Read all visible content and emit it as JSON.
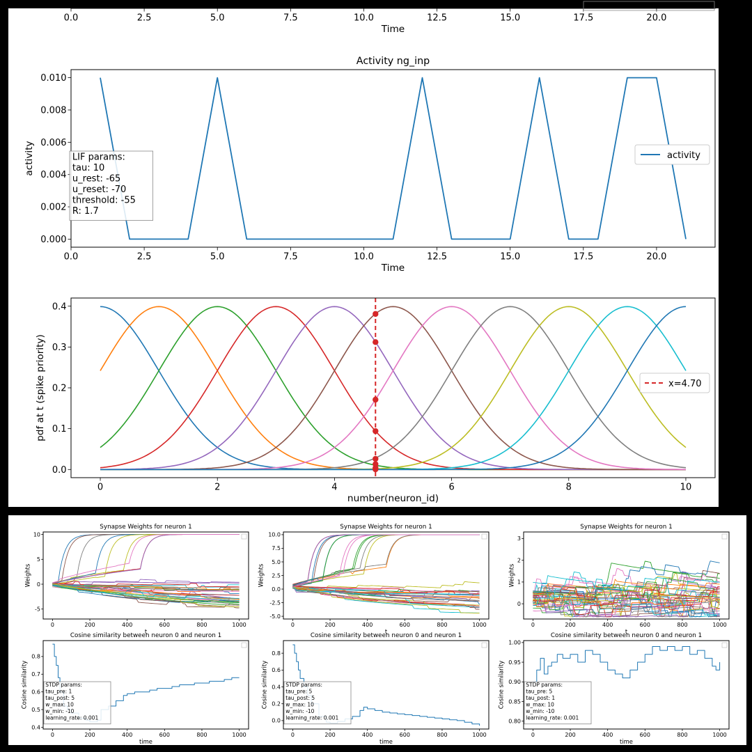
{
  "colors": {
    "tab10": [
      "#1f77b4",
      "#ff7f0e",
      "#2ca02c",
      "#d62728",
      "#9467bd",
      "#8c564b",
      "#e377c2",
      "#7f7f7f",
      "#bcbd22",
      "#17becf"
    ],
    "activity_line": "#1f77b4",
    "vline": "#d62728"
  },
  "chart_data": [
    {
      "id": "top-cut-plot",
      "type": "line",
      "title": "",
      "xlabel": "Time",
      "ylabel": "",
      "xlim": [
        0,
        22
      ],
      "xticks": [
        0.0,
        2.5,
        5.0,
        7.5,
        10.0,
        12.5,
        15.0,
        17.5,
        20.0
      ],
      "xtick_labels": [
        "0.0",
        "2.5",
        "5.0",
        "7.5",
        "10.0",
        "12.5",
        "15.0",
        "17.5",
        "20.0"
      ],
      "series": []
    },
    {
      "id": "activity",
      "type": "line",
      "title": "Activity ng_inp",
      "xlabel": "Time",
      "ylabel": "activity",
      "xlim": [
        0,
        22
      ],
      "ylim": [
        -0.0005,
        0.0105
      ],
      "xticks": [
        0.0,
        2.5,
        5.0,
        7.5,
        10.0,
        12.5,
        15.0,
        17.5,
        20.0
      ],
      "xtick_labels": [
        "0.0",
        "2.5",
        "5.0",
        "7.5",
        "10.0",
        "12.5",
        "15.0",
        "17.5",
        "20.0"
      ],
      "yticks": [
        0.0,
        0.002,
        0.004,
        0.006,
        0.008,
        0.01
      ],
      "ytick_labels": [
        "0.000",
        "0.002",
        "0.004",
        "0.006",
        "0.008",
        "0.010"
      ],
      "series": [
        {
          "name": "activity",
          "x": [
            1,
            2,
            3,
            4,
            5,
            6,
            7,
            8,
            9,
            10,
            11,
            12,
            13,
            14,
            15,
            16,
            17,
            18,
            19,
            20,
            21
          ],
          "y": [
            0.01,
            0,
            0,
            0,
            0.01,
            0,
            0,
            0,
            0,
            0,
            0,
            0.01,
            0,
            0,
            0,
            0.01,
            0,
            0,
            0.01,
            0.01,
            0
          ]
        }
      ],
      "legend": {
        "position": "center-right",
        "entries": [
          "activity"
        ]
      },
      "annotation": [
        "LIF params:",
        "tau: 10",
        "u_rest: -65",
        "u_reset: -70",
        "threshold: -55",
        "R: 1.7"
      ]
    },
    {
      "id": "gaussian",
      "type": "line",
      "title": "",
      "xlabel": "number(neuron_id)",
      "ylabel": "pdf at t (spike priority)",
      "xlim": [
        -0.5,
        10.5
      ],
      "ylim": [
        -0.02,
        0.42
      ],
      "xticks": [
        0,
        2,
        4,
        6,
        8,
        10
      ],
      "xtick_labels": [
        "0",
        "2",
        "4",
        "6",
        "8",
        "10"
      ],
      "yticks": [
        0.0,
        0.1,
        0.2,
        0.3,
        0.4
      ],
      "ytick_labels": [
        "0.0",
        "0.1",
        "0.2",
        "0.3",
        "0.4"
      ],
      "gaussian_series": {
        "count": 11,
        "means": [
          0,
          1,
          2,
          3,
          4,
          5,
          6,
          7,
          8,
          9,
          10
        ],
        "std": 1.0,
        "x_range": [
          0,
          10
        ]
      },
      "vline": {
        "x": 4.7,
        "label": "x=4.70"
      },
      "marker_values": [
        0.381,
        0.312,
        0.171,
        0.094,
        0.026,
        0.013,
        0.004,
        0.0005
      ],
      "legend": {
        "position": "center-right",
        "entries": [
          "x=4.70"
        ]
      }
    },
    {
      "id": "weights-1",
      "type": "line",
      "title": "Synapse Weights for neuron 1",
      "xlabel": "t",
      "ylabel": "Weights",
      "xlim": [
        -50,
        1050
      ],
      "ylim": [
        -7,
        10.5
      ],
      "xticks": [
        0,
        200,
        400,
        600,
        800,
        1000
      ],
      "xtick_labels": [
        "0",
        "200",
        "400",
        "600",
        "800",
        "1000"
      ],
      "yticks": [
        -5,
        0,
        5,
        10
      ],
      "ytick_labels": [
        "-5",
        "0",
        "5",
        "10"
      ],
      "n_series": 40,
      "pattern": {
        "up_fraction": 0.3,
        "end_low": -6.5,
        "end_high": 10,
        "start": 0
      }
    },
    {
      "id": "weights-2",
      "type": "line",
      "title": "Synapse Weights for neuron 1",
      "xlabel": "t",
      "ylabel": "Weights",
      "xlim": [
        -50,
        1050
      ],
      "ylim": [
        -5.5,
        10.5
      ],
      "xticks": [
        0,
        200,
        400,
        600,
        800,
        1000
      ],
      "xtick_labels": [
        "0",
        "200",
        "400",
        "600",
        "800",
        "1000"
      ],
      "yticks": [
        -5.0,
        -2.5,
        0.0,
        2.5,
        5.0,
        7.5,
        10.0
      ],
      "ytick_labels": [
        "-5.0",
        "-2.5",
        "0.0",
        "2.5",
        "5.0",
        "7.5",
        "10.0"
      ],
      "n_series": 40,
      "pattern": {
        "up_fraction": 0.25,
        "end_low": -5,
        "end_high": 10,
        "start": 0.5
      }
    },
    {
      "id": "weights-3",
      "type": "line",
      "title": "Synapse Weights for neuron 1",
      "xlabel": "t",
      "ylabel": "Weights",
      "xlim": [
        -50,
        1050
      ],
      "ylim": [
        -0.7,
        3.3
      ],
      "xticks": [
        0,
        200,
        400,
        600,
        800,
        1000
      ],
      "xtick_labels": [
        "0",
        "200",
        "400",
        "600",
        "800",
        "1000"
      ],
      "yticks": [
        0,
        1,
        2,
        3
      ],
      "ytick_labels": [
        "0",
        "1",
        "2",
        "3"
      ],
      "n_series": 40,
      "pattern": {
        "up_fraction": 0.0,
        "end_low": -0.5,
        "end_high": 3,
        "start": 0.3
      }
    },
    {
      "id": "cos-1",
      "type": "line",
      "title": "Cosine similarity between neuron 0 and neuron 1",
      "xlabel": "time",
      "ylabel": "Cosine similarity",
      "xlim": [
        -50,
        1050
      ],
      "ylim": [
        0.39,
        0.89
      ],
      "xticks": [
        0,
        200,
        400,
        600,
        800,
        1000
      ],
      "xtick_labels": [
        "0",
        "200",
        "400",
        "600",
        "800",
        "1000"
      ],
      "yticks": [
        0.4,
        0.5,
        0.6,
        0.7,
        0.8
      ],
      "ytick_labels": [
        "0.4",
        "0.5",
        "0.6",
        "0.7",
        "0.8"
      ],
      "series": [
        {
          "x": [
            0,
            10,
            20,
            30,
            40,
            60,
            80,
            100,
            140,
            180,
            200,
            240,
            260,
            300,
            340,
            380,
            400,
            440,
            480,
            520,
            560,
            600,
            640,
            680,
            720,
            760,
            800,
            840,
            880,
            920,
            960,
            1000
          ],
          "y": [
            0.87,
            0.8,
            0.75,
            0.68,
            0.6,
            0.52,
            0.5,
            0.48,
            0.45,
            0.44,
            0.43,
            0.44,
            0.5,
            0.52,
            0.55,
            0.58,
            0.59,
            0.6,
            0.6,
            0.61,
            0.62,
            0.62,
            0.63,
            0.64,
            0.64,
            0.65,
            0.65,
            0.66,
            0.66,
            0.67,
            0.68,
            0.68
          ]
        }
      ],
      "annotation": [
        "STDP params:",
        "tau_pre: 1",
        "tau_post: 5",
        "w_max: 10",
        "w_min: -10",
        "learning_rate: 0.001"
      ]
    },
    {
      "id": "cos-2",
      "type": "line",
      "title": "Cosine similarity between neuron 0 and neuron 1",
      "xlabel": "time",
      "ylabel": "Cosine similarity",
      "xlim": [
        -50,
        1050
      ],
      "ylim": [
        -0.1,
        0.95
      ],
      "xticks": [
        0,
        200,
        400,
        600,
        800,
        1000
      ],
      "xtick_labels": [
        "0",
        "200",
        "400",
        "600",
        "800",
        "1000"
      ],
      "yticks": [
        0.0,
        0.2,
        0.4,
        0.6,
        0.8
      ],
      "ytick_labels": [
        "0.0",
        "0.2",
        "0.4",
        "0.6",
        "0.8"
      ],
      "series": [
        {
          "x": [
            0,
            10,
            20,
            30,
            40,
            60,
            80,
            100,
            140,
            180,
            200,
            240,
            280,
            320,
            360,
            380,
            400,
            440,
            480,
            520,
            560,
            600,
            640,
            680,
            720,
            760,
            800,
            840,
            880,
            920,
            960,
            1000
          ],
          "y": [
            0.9,
            0.8,
            0.7,
            0.6,
            0.5,
            0.4,
            0.3,
            0.2,
            0.05,
            -0.02,
            -0.03,
            -0.01,
            0.02,
            0.05,
            0.12,
            0.16,
            0.14,
            0.12,
            0.1,
            0.09,
            0.08,
            0.07,
            0.06,
            0.05,
            0.04,
            0.03,
            0.02,
            0.01,
            0.0,
            -0.02,
            -0.04,
            -0.06
          ]
        }
      ],
      "annotation": [
        "STDP params:",
        "tau_pre: 5",
        "tau_post: 5",
        "w_max: 10",
        "w_min: -10",
        "learning_rate: 0.001"
      ]
    },
    {
      "id": "cos-3",
      "type": "line",
      "title": "Cosine similarity between neuron 0 and neuron 1",
      "xlabel": "time",
      "ylabel": "Cosine similarity",
      "xlim": [
        -50,
        1050
      ],
      "ylim": [
        0.78,
        1.005
      ],
      "xticks": [
        0,
        200,
        400,
        600,
        800,
        1000
      ],
      "xtick_labels": [
        "0",
        "200",
        "400",
        "600",
        "800",
        "1000"
      ],
      "yticks": [
        0.8,
        0.85,
        0.9,
        0.95,
        1.0
      ],
      "ytick_labels": [
        "0.80",
        "0.85",
        "0.90",
        "0.95",
        "1.00"
      ],
      "series": [
        {
          "x": [
            0,
            20,
            40,
            60,
            80,
            100,
            130,
            160,
            200,
            240,
            280,
            320,
            360,
            400,
            440,
            480,
            520,
            560,
            600,
            640,
            680,
            720,
            760,
            800,
            840,
            880,
            920,
            960,
            980,
            1000
          ],
          "y": [
            0.9,
            0.93,
            0.96,
            0.92,
            0.94,
            0.95,
            0.97,
            0.96,
            0.97,
            0.95,
            0.98,
            0.97,
            0.95,
            0.93,
            0.92,
            0.91,
            0.93,
            0.95,
            0.97,
            0.99,
            0.98,
            0.99,
            0.98,
            0.99,
            0.97,
            0.98,
            0.96,
            0.94,
            0.93,
            0.95
          ]
        }
      ],
      "annotation": [
        "STDP params:",
        "tau_pre: 5",
        "tau_post: 1",
        "w_max: 10",
        "w_min: -10",
        "learning_rate: 0.001"
      ]
    }
  ]
}
